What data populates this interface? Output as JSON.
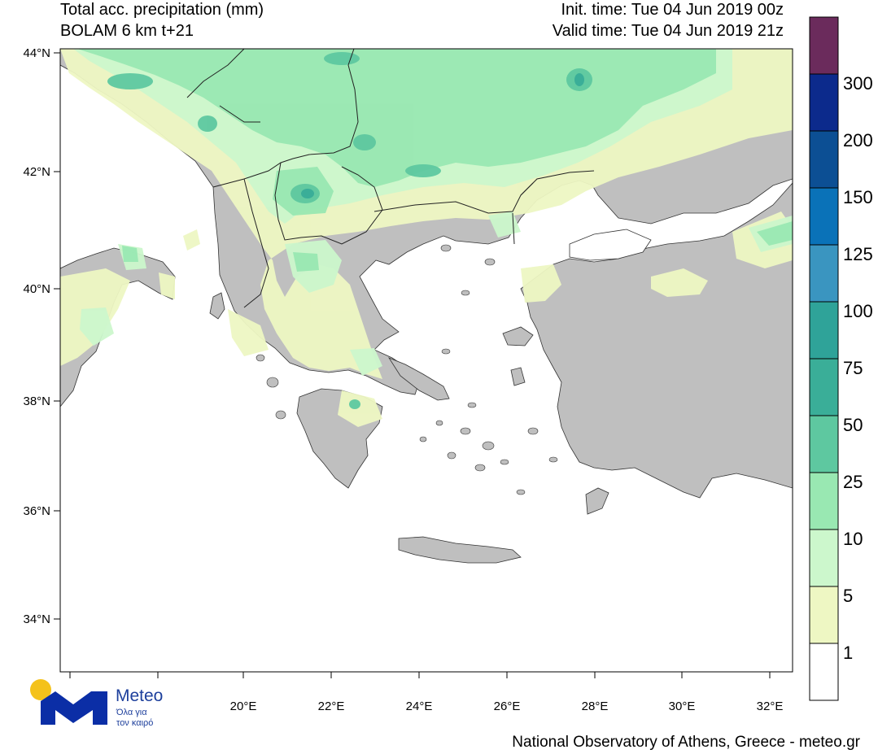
{
  "header": {
    "title_line1": "Total acc. precipitation (mm)",
    "title_line2": "BOLAM 6 km t+21",
    "init_time": "Init. time: Tue 04 Jun 2019 00z",
    "valid_time": "Valid time: Tue 04 Jun 2019 21z"
  },
  "map": {
    "projection": "lat-lon",
    "lat_range": [
      33,
      44
    ],
    "lon_range": [
      18.8,
      32.5
    ],
    "lat_ticks": [
      "44°N",
      "42°N",
      "40°N",
      "38°N",
      "36°N",
      "34°N"
    ],
    "lon_ticks": [
      "20°E",
      "22°E",
      "24°E",
      "26°E",
      "28°E",
      "30°E",
      "32°E"
    ],
    "land_color": "#bfbfbf",
    "sea_color": "#ffffff"
  },
  "colorbar": {
    "labels": [
      "1",
      "5",
      "10",
      "25",
      "50",
      "75",
      "100",
      "125",
      "150",
      "200",
      "300"
    ],
    "colors": [
      "#ffffff",
      "#eef7c3",
      "#ccf7cc",
      "#99e8b2",
      "#5ec8a0",
      "#3aae98",
      "#2fa399",
      "#3a95c0",
      "#0a72b8",
      "#0c4f94",
      "#0c2a8c",
      "#6b2b5c"
    ]
  },
  "logo": {
    "name": "Meteo",
    "tagline1": "Όλα για",
    "tagline2": "τον καιρό",
    "sun_color": "#f4c21b",
    "brand_color": "#0b2ea6"
  },
  "footer": "National Observatory of Athens, Greece - meteo.gr"
}
